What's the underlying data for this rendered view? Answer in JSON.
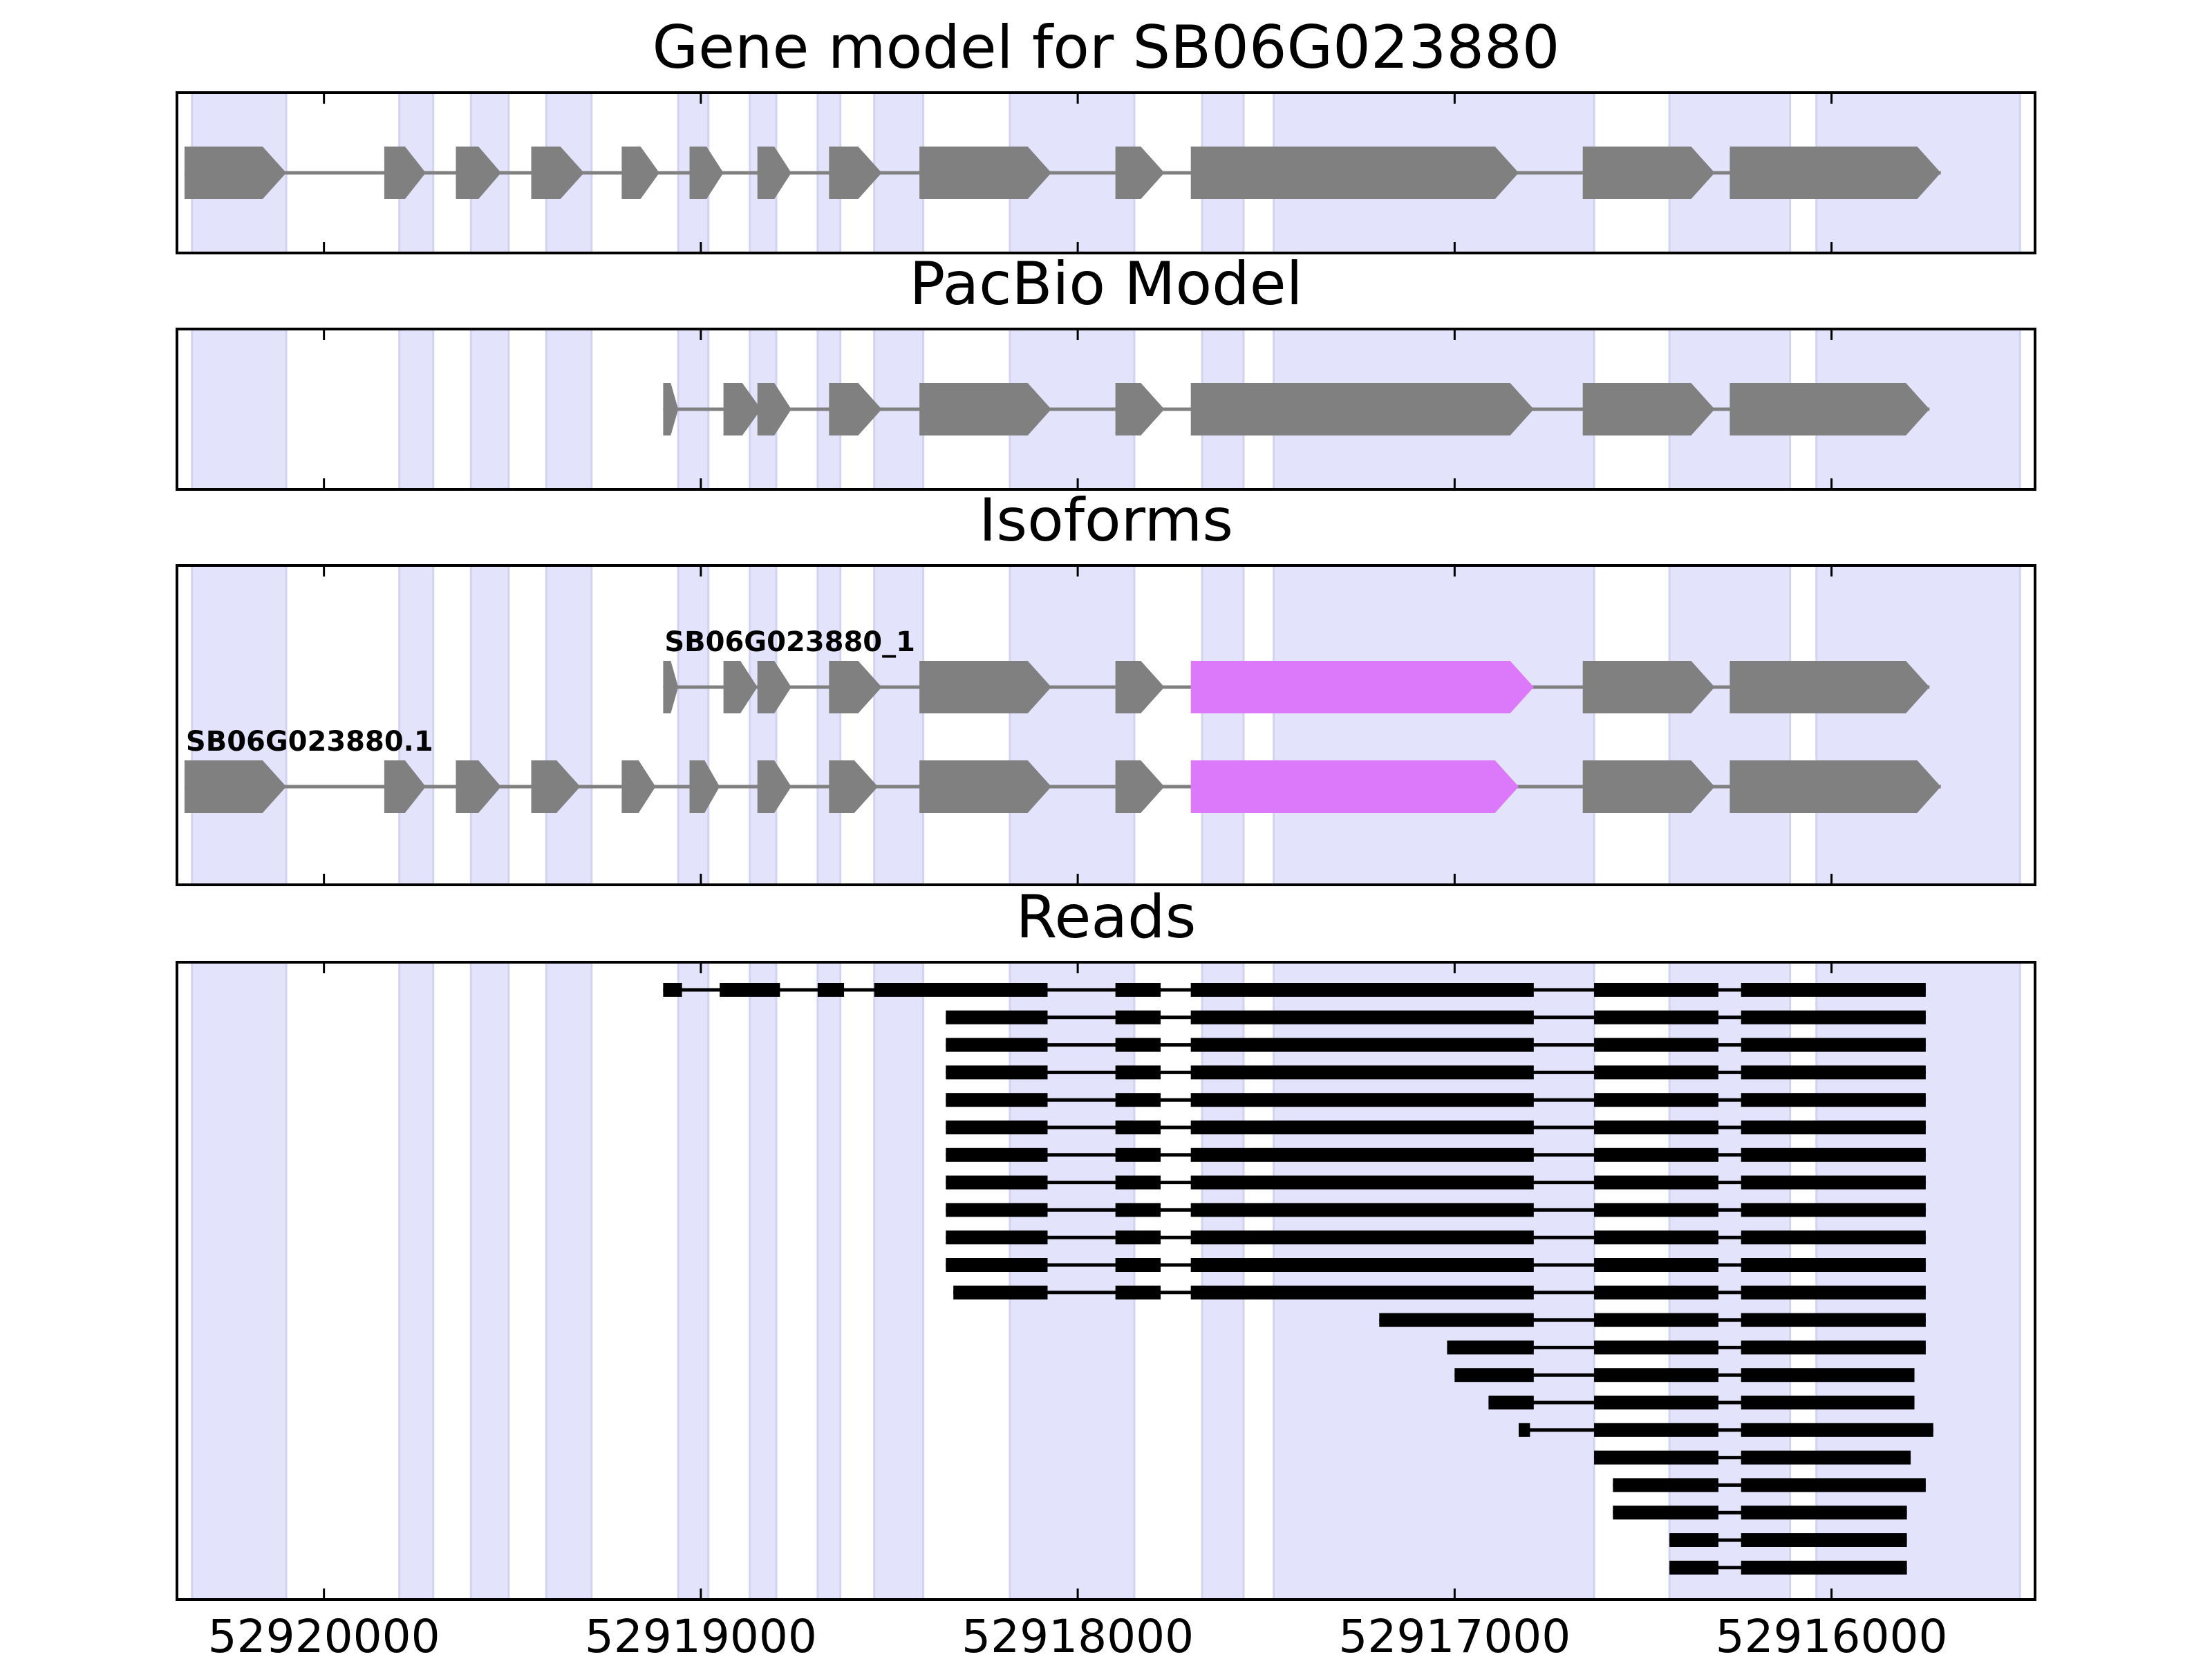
{
  "chart_data": {
    "type": "gene-track",
    "colors": {
      "exon_band": "#e3e3fb",
      "exon_band_edge": "#d2d2f2",
      "exon": "#808080",
      "intron": "#808080",
      "highlight": "#dc78fa",
      "read": "#000000",
      "frame": "#000000"
    },
    "xaxis": {
      "xlim": [
        52920390,
        52915460
      ],
      "ticks": [
        52920000,
        52919000,
        52918000,
        52917000,
        52916000
      ],
      "tick_labels": [
        "52920000",
        "52919000",
        "52918000",
        "52917000",
        "52916000"
      ]
    },
    "exon_bands": [
      [
        52920350,
        52920100
      ],
      [
        52919800,
        52919710
      ],
      [
        52919610,
        52919510
      ],
      [
        52919410,
        52919290
      ],
      [
        52919060,
        52918980
      ],
      [
        52918870,
        52918800
      ],
      [
        52918690,
        52918630
      ],
      [
        52918540,
        52918410
      ],
      [
        52918180,
        52917850
      ],
      [
        52917670,
        52917560
      ],
      [
        52917480,
        52916630
      ],
      [
        52916430,
        52916110
      ],
      [
        52916040,
        52915500
      ]
    ],
    "panels": [
      {
        "id": "gene-model",
        "title": "Gene model for SB06G023880",
        "transcripts": [
          {
            "label": "",
            "exons": [
              [
                52920370,
                52920100
              ],
              [
                52919840,
                52919730
              ],
              [
                52919650,
                52919530
              ],
              [
                52919450,
                52919310
              ],
              [
                52919210,
                52919110
              ],
              [
                52919030,
                52918940
              ],
              [
                52918850,
                52918760
              ],
              [
                52918660,
                52918520
              ],
              [
                52918420,
                52918070
              ],
              [
                52917900,
                52917770
              ],
              [
                52917700,
                52916830
              ],
              [
                52916660,
                52916310
              ],
              [
                52916270,
                52915710
              ]
            ],
            "highlight": [],
            "row": 0
          }
        ]
      },
      {
        "id": "pacbio-model",
        "title": "PacBio Model",
        "transcripts": [
          {
            "label": "",
            "exons": [
              [
                52919100,
                52919060
              ],
              [
                52918940,
                52918840
              ],
              [
                52918850,
                52918760
              ],
              [
                52918660,
                52918520
              ],
              [
                52918420,
                52918070
              ],
              [
                52917900,
                52917770
              ],
              [
                52917700,
                52916790
              ],
              [
                52916660,
                52916310
              ],
              [
                52916270,
                52915740
              ]
            ],
            "highlight": [],
            "row": 0
          }
        ]
      },
      {
        "id": "isoforms",
        "title": "Isoforms",
        "transcripts": [
          {
            "label": "SB06G023880_1",
            "exons": [
              [
                52919100,
                52919060
              ],
              [
                52918940,
                52918850
              ],
              [
                52918850,
                52918760
              ],
              [
                52918660,
                52918520
              ],
              [
                52918420,
                52918070
              ],
              [
                52917900,
                52917770
              ],
              [
                52917700,
                52916790
              ],
              [
                52916660,
                52916310
              ],
              [
                52916270,
                52915740
              ]
            ],
            "highlight": [
              6
            ],
            "row": 0
          },
          {
            "label": "SB06G023880.1",
            "exons": [
              [
                52920370,
                52920100
              ],
              [
                52919840,
                52919730
              ],
              [
                52919650,
                52919530
              ],
              [
                52919450,
                52919320
              ],
              [
                52919210,
                52919120
              ],
              [
                52919030,
                52918950
              ],
              [
                52918850,
                52918760
              ],
              [
                52918660,
                52918530
              ],
              [
                52918420,
                52918070
              ],
              [
                52917900,
                52917770
              ],
              [
                52917700,
                52916830
              ],
              [
                52916660,
                52916310
              ],
              [
                52916270,
                52915710
              ]
            ],
            "highlight": [
              10
            ],
            "row": 1
          }
        ]
      },
      {
        "id": "reads",
        "title": "Reads",
        "reads": [
          [
            [
              52919100,
              52919050
            ],
            [
              52918950,
              52918860
            ],
            [
              52918870,
              52918790
            ],
            [
              52918690,
              52918620
            ],
            [
              52918540,
              52918410
            ],
            [
              52918420,
              52918080
            ],
            [
              52917900,
              52917780
            ],
            [
              52917700,
              52916790
            ],
            [
              52916630,
              52916300
            ],
            [
              52916240,
              52915750
            ]
          ],
          [
            [
              52918350,
              52918080
            ],
            [
              52917900,
              52917780
            ],
            [
              52917700,
              52916790
            ],
            [
              52916630,
              52916300
            ],
            [
              52916240,
              52915750
            ]
          ],
          [
            [
              52918350,
              52918080
            ],
            [
              52917900,
              52917780
            ],
            [
              52917700,
              52916790
            ],
            [
              52916630,
              52916300
            ],
            [
              52916240,
              52915750
            ]
          ],
          [
            [
              52918350,
              52918080
            ],
            [
              52917900,
              52917780
            ],
            [
              52917700,
              52916790
            ],
            [
              52916630,
              52916300
            ],
            [
              52916240,
              52915750
            ]
          ],
          [
            [
              52918350,
              52918080
            ],
            [
              52917900,
              52917780
            ],
            [
              52917700,
              52916790
            ],
            [
              52916630,
              52916300
            ],
            [
              52916240,
              52915750
            ]
          ],
          [
            [
              52918350,
              52918080
            ],
            [
              52917900,
              52917780
            ],
            [
              52917700,
              52916790
            ],
            [
              52916630,
              52916300
            ],
            [
              52916240,
              52915750
            ]
          ],
          [
            [
              52918350,
              52918080
            ],
            [
              52917900,
              52917780
            ],
            [
              52917700,
              52916790
            ],
            [
              52916630,
              52916300
            ],
            [
              52916240,
              52915750
            ]
          ],
          [
            [
              52918350,
              52918080
            ],
            [
              52917900,
              52917780
            ],
            [
              52917700,
              52916790
            ],
            [
              52916630,
              52916300
            ],
            [
              52916240,
              52915750
            ]
          ],
          [
            [
              52918350,
              52918080
            ],
            [
              52917900,
              52917780
            ],
            [
              52917700,
              52916790
            ],
            [
              52916630,
              52916300
            ],
            [
              52916240,
              52915750
            ]
          ],
          [
            [
              52918350,
              52918080
            ],
            [
              52917900,
              52917780
            ],
            [
              52917700,
              52916790
            ],
            [
              52916630,
              52916300
            ],
            [
              52916240,
              52915750
            ]
          ],
          [
            [
              52918350,
              52918080
            ],
            [
              52917900,
              52917780
            ],
            [
              52917700,
              52916790
            ],
            [
              52916630,
              52916300
            ],
            [
              52916240,
              52915750
            ]
          ],
          [
            [
              52918330,
              52918080
            ],
            [
              52917900,
              52917780
            ],
            [
              52917700,
              52916790
            ],
            [
              52916630,
              52916300
            ],
            [
              52916240,
              52915750
            ]
          ],
          [
            [
              52917200,
              52916790
            ],
            [
              52916630,
              52916300
            ],
            [
              52916240,
              52915750
            ]
          ],
          [
            [
              52917020,
              52916790
            ],
            [
              52916630,
              52916300
            ],
            [
              52916240,
              52915750
            ]
          ],
          [
            [
              52917000,
              52916790
            ],
            [
              52916630,
              52916300
            ],
            [
              52916240,
              52915780
            ]
          ],
          [
            [
              52916910,
              52916790
            ],
            [
              52916630,
              52916300
            ],
            [
              52916240,
              52915780
            ]
          ],
          [
            [
              52916830,
              52916800
            ],
            [
              52916630,
              52916300
            ],
            [
              52916240,
              52915730
            ]
          ],
          [
            [
              52916630,
              52916300
            ],
            [
              52916240,
              52915790
            ]
          ],
          [
            [
              52916580,
              52916300
            ],
            [
              52916240,
              52915750
            ]
          ],
          [
            [
              52916580,
              52916300
            ],
            [
              52916240,
              52915800
            ]
          ],
          [
            [
              52916430,
              52916300
            ],
            [
              52916240,
              52915800
            ]
          ],
          [
            [
              52916430,
              52916300
            ],
            [
              52916240,
              52915800
            ]
          ]
        ]
      }
    ]
  }
}
